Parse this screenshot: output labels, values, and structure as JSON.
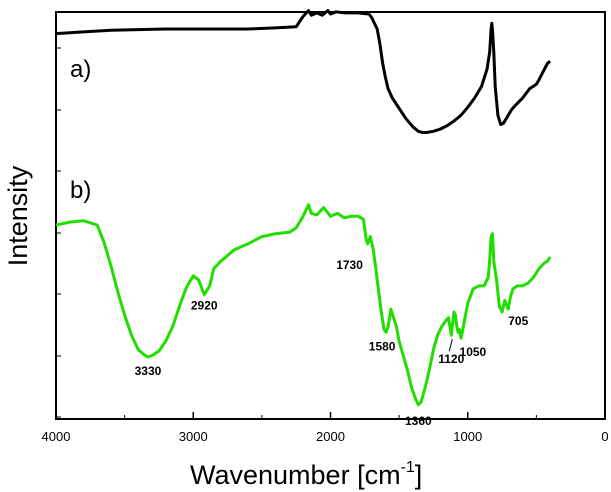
{
  "chart_data": {
    "type": "line",
    "xlabel": "Wavenumber [cm",
    "xlabel_sup": "-1",
    "xlabel_close": "]",
    "ylabel": "Intensity",
    "xlim": [
      4000,
      0
    ],
    "x_ticks": [
      "4000",
      "3000",
      "2000",
      "1000",
      "0"
    ],
    "panel_labels": [
      "a)",
      "b)"
    ],
    "series": [
      {
        "label": "a)",
        "color": "#000000",
        "x": [
          4000,
          3800,
          3600,
          3400,
          3200,
          3000,
          2800,
          2600,
          2400,
          2250,
          2200,
          2160,
          2140,
          2100,
          2060,
          2020,
          2000,
          1960,
          1900,
          1850,
          1800,
          1760,
          1720,
          1700,
          1680,
          1660,
          1640,
          1620,
          1600,
          1580,
          1550,
          1500,
          1450,
          1400,
          1360,
          1330,
          1300,
          1250,
          1200,
          1150,
          1100,
          1050,
          1000,
          950,
          900,
          860,
          840,
          830,
          825,
          820,
          810,
          800,
          780,
          760,
          740,
          720,
          700,
          680,
          650,
          600,
          550,
          500,
          480,
          450,
          420,
          400
        ],
        "y": [
          0.56,
          0.575,
          0.59,
          0.595,
          0.6,
          0.6,
          0.6,
          0.6,
          0.61,
          0.62,
          0.71,
          0.76,
          0.72,
          0.74,
          0.72,
          0.76,
          0.73,
          0.75,
          0.74,
          0.74,
          0.74,
          0.735,
          0.73,
          0.7,
          0.65,
          0.6,
          0.47,
          0.3,
          0.18,
          0.08,
          0.0,
          -0.09,
          -0.18,
          -0.25,
          -0.29,
          -0.3,
          -0.3,
          -0.29,
          -0.27,
          -0.24,
          -0.2,
          -0.15,
          -0.08,
          0.0,
          0.1,
          0.25,
          0.4,
          0.6,
          0.65,
          0.59,
          0.4,
          0.1,
          -0.15,
          -0.23,
          -0.22,
          -0.18,
          -0.14,
          -0.1,
          -0.06,
          0.0,
          0.08,
          0.12,
          0.16,
          0.23,
          0.3,
          0.32
        ]
      },
      {
        "label": "b)",
        "color": "#22dd00",
        "x": [
          4000,
          3900,
          3800,
          3700,
          3650,
          3600,
          3550,
          3500,
          3450,
          3400,
          3350,
          3330,
          3300,
          3250,
          3200,
          3150,
          3100,
          3050,
          3000,
          2960,
          2920,
          2880,
          2850,
          2800,
          2700,
          2600,
          2500,
          2400,
          2300,
          2250,
          2200,
          2160,
          2140,
          2100,
          2050,
          2000,
          1950,
          1900,
          1850,
          1800,
          1760,
          1740,
          1730,
          1710,
          1690,
          1670,
          1650,
          1630,
          1610,
          1595,
          1580,
          1560,
          1540,
          1520,
          1500,
          1470,
          1440,
          1410,
          1380,
          1360,
          1340,
          1310,
          1280,
          1250,
          1220,
          1190,
          1160,
          1140,
          1120,
          1100,
          1090,
          1080,
          1070,
          1060,
          1050,
          1040,
          1020,
          1000,
          960,
          920,
          880,
          850,
          840,
          830,
          820,
          810,
          790,
          770,
          750,
          730,
          705,
          690,
          670,
          640,
          600,
          560,
          520,
          480,
          440,
          420,
          400
        ],
        "y": [
          0.0,
          0.02,
          0.03,
          0.0,
          -0.12,
          -0.28,
          -0.46,
          -0.62,
          -0.76,
          -0.86,
          -0.9,
          -0.91,
          -0.9,
          -0.87,
          -0.8,
          -0.7,
          -0.56,
          -0.43,
          -0.35,
          -0.38,
          -0.48,
          -0.42,
          -0.3,
          -0.25,
          -0.17,
          -0.13,
          -0.08,
          -0.06,
          -0.05,
          -0.02,
          0.06,
          0.14,
          0.08,
          0.07,
          0.12,
          0.06,
          0.08,
          0.05,
          0.06,
          0.06,
          0.04,
          -0.1,
          -0.13,
          -0.08,
          -0.16,
          -0.3,
          -0.45,
          -0.6,
          -0.72,
          -0.74,
          -0.7,
          -0.58,
          -0.64,
          -0.7,
          -0.8,
          -0.9,
          -1.0,
          -1.12,
          -1.2,
          -1.24,
          -1.22,
          -1.12,
          -1.0,
          -0.86,
          -0.76,
          -0.7,
          -0.66,
          -0.64,
          -0.76,
          -0.6,
          -0.62,
          -0.7,
          -0.74,
          -0.72,
          -0.78,
          -0.74,
          -0.64,
          -0.54,
          -0.44,
          -0.42,
          -0.42,
          -0.36,
          -0.24,
          -0.08,
          -0.06,
          -0.25,
          -0.38,
          -0.56,
          -0.6,
          -0.52,
          -0.58,
          -0.5,
          -0.44,
          -0.42,
          -0.42,
          -0.4,
          -0.36,
          -0.3,
          -0.26,
          -0.25,
          -0.22
        ]
      }
    ],
    "annotations": [
      {
        "text": "3330",
        "series": 1,
        "x": 3330
      },
      {
        "text": "2920",
        "series": 1,
        "x": 2920
      },
      {
        "text": "1730",
        "series": 1,
        "x": 1730
      },
      {
        "text": "1580",
        "series": 1,
        "x": 1580
      },
      {
        "text": "1360",
        "series": 1,
        "x": 1360
      },
      {
        "text": "1120",
        "series": 1,
        "x": 1120
      },
      {
        "text": "1050",
        "series": 1,
        "x": 1050
      },
      {
        "text": "705",
        "series": 1,
        "x": 705
      }
    ]
  }
}
